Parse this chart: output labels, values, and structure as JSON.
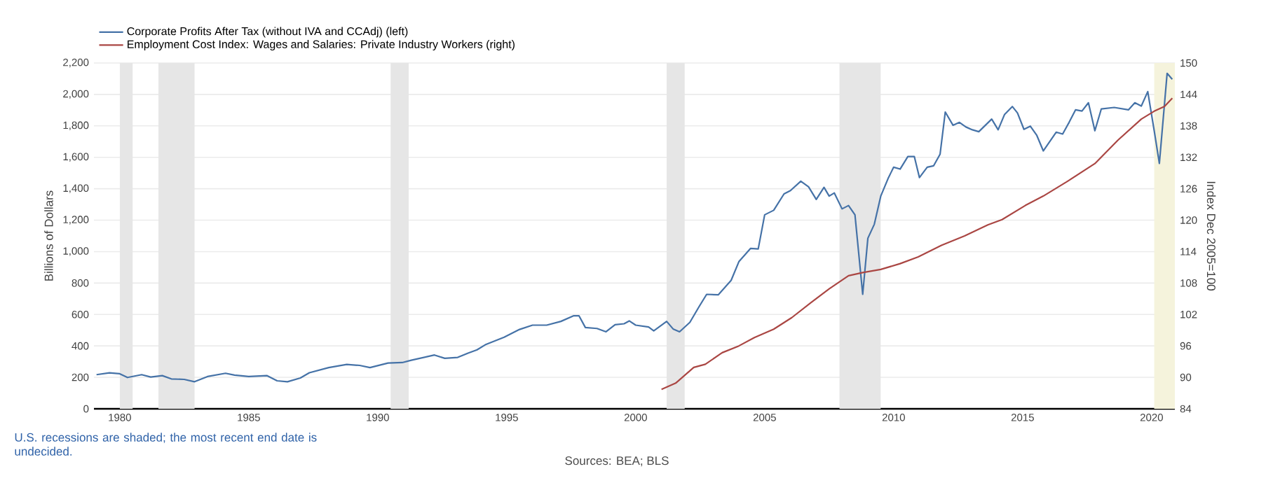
{
  "chart_data": {
    "type": "line",
    "xlim": [
      1979,
      2020.9
    ],
    "xticks": [
      1980,
      1985,
      1990,
      1995,
      2000,
      2005,
      2010,
      2015,
      2020
    ],
    "ylim": [
      0,
      2200
    ],
    "yticks": [
      {
        "value": 0,
        "label": "0"
      },
      {
        "value": 200,
        "label": "200"
      },
      {
        "value": 400,
        "label": "400"
      },
      {
        "value": 600,
        "label": "600"
      },
      {
        "value": 800,
        "label": "800"
      },
      {
        "value": 1000,
        "label": "1,000"
      },
      {
        "value": 1200,
        "label": "1,200"
      },
      {
        "value": 1400,
        "label": "1,400"
      },
      {
        "value": 1600,
        "label": "1,600"
      },
      {
        "value": 1800,
        "label": "1,800"
      },
      {
        "value": 2000,
        "label": "2,000"
      },
      {
        "value": 2200,
        "label": "2,200"
      }
    ],
    "y2lim": [
      84,
      150
    ],
    "y2ticks": [
      84,
      90,
      96,
      102,
      108,
      114,
      120,
      126,
      132,
      138,
      144,
      150
    ],
    "ylabel": "Billions of Dollars",
    "y2label": "Index Dec 2005=100",
    "grid": "y",
    "legend": "top left",
    "series": [
      {
        "name": "Corporate Profits After Tax (without IVA and CCAdj) (left)",
        "color": "#4572a7",
        "x": [
          1979.1,
          1979.6,
          1980.0,
          1980.3,
          1980.85,
          1981.2,
          1981.65,
          1982.0,
          1982.5,
          1982.9,
          1983.4,
          1984.1,
          1984.45,
          1985.0,
          1985.7,
          1986.1,
          1986.5,
          1987.0,
          1987.35,
          1988.1,
          1988.8,
          1989.3,
          1989.7,
          1990.4,
          1990.95,
          1991.3,
          1992.2,
          1992.6,
          1993.1,
          1993.5,
          1993.85,
          1994.2,
          1994.9,
          1995.5,
          1996.0,
          1996.55,
          1997.1,
          1997.6,
          1997.8,
          1998.05,
          1998.5,
          1998.85,
          1999.2,
          1999.55,
          1999.75,
          2000.0,
          2000.5,
          2000.7,
          2001.2,
          2001.45,
          2001.7,
          2002.1,
          2002.45,
          2002.75,
          2003.2,
          2003.7,
          2004.0,
          2004.45,
          2004.75,
          2005.0,
          2005.35,
          2005.75,
          2006.0,
          2006.4,
          2006.7,
          2007.0,
          2007.3,
          2007.5,
          2007.7,
          2008.0,
          2008.25,
          2008.5,
          2008.8,
          2009.0,
          2009.25,
          2009.5,
          2009.8,
          2010.0,
          2010.25,
          2010.55,
          2010.8,
          2011.0,
          2011.3,
          2011.55,
          2011.8,
          2012.0,
          2012.3,
          2012.55,
          2012.8,
          2013.05,
          2013.3,
          2013.8,
          2014.05,
          2014.3,
          2014.6,
          2014.8,
          2015.05,
          2015.3,
          2015.55,
          2015.8,
          2016.3,
          2016.55,
          2016.8,
          2017.05,
          2017.3,
          2017.55,
          2017.8,
          2018.05,
          2018.55,
          2019.1,
          2019.35,
          2019.6,
          2019.85,
          2020.1,
          2020.3,
          2020.6,
          2020.8
        ],
        "values": [
          217,
          229,
          223,
          199,
          217,
          202,
          211,
          190,
          187,
          172,
          205,
          226,
          214,
          205,
          211,
          178,
          172,
          196,
          229,
          262,
          282,
          276,
          262,
          291,
          294,
          309,
          342,
          321,
          327,
          354,
          375,
          410,
          455,
          505,
          532,
          532,
          556,
          592,
          592,
          517,
          511,
          490,
          535,
          541,
          559,
          532,
          520,
          496,
          556,
          508,
          490,
          550,
          648,
          728,
          725,
          817,
          936,
          1020,
          1017,
          1234,
          1263,
          1367,
          1388,
          1448,
          1412,
          1332,
          1409,
          1353,
          1373,
          1272,
          1293,
          1234,
          728,
          1085,
          1174,
          1353,
          1471,
          1537,
          1525,
          1605,
          1605,
          1471,
          1537,
          1546,
          1620,
          1888,
          1804,
          1822,
          1793,
          1775,
          1763,
          1843,
          1775,
          1873,
          1923,
          1882,
          1778,
          1798,
          1739,
          1641,
          1760,
          1748,
          1822,
          1902,
          1894,
          1947,
          1769,
          1908,
          1917,
          1902,
          1947,
          1926,
          2018,
          1769,
          1561,
          2134,
          2096
        ]
      },
      {
        "name": "Employment Cost Index: Wages and Salaries: Private Industry Workers (right)",
        "color": "#aa4643",
        "axis": "y2",
        "x": [
          2001.0,
          2001.55,
          2002.25,
          2002.7,
          2003.35,
          2004.0,
          2004.6,
          2005.35,
          2006.05,
          2006.8,
          2007.5,
          2008.25,
          2008.8,
          2009.5,
          2010.25,
          2010.95,
          2011.85,
          2012.75,
          2013.65,
          2014.2,
          2015.1,
          2015.8,
          2016.7,
          2017.8,
          2018.7,
          2019.6,
          2020.1,
          2020.5,
          2020.8
        ],
        "values": [
          87.7,
          88.9,
          91.9,
          92.5,
          94.7,
          96.0,
          97.6,
          99.2,
          101.4,
          104.3,
          106.9,
          109.4,
          110.0,
          110.6,
          111.7,
          113.0,
          115.2,
          117.0,
          119.1,
          120.1,
          122.8,
          124.6,
          127.3,
          130.8,
          135.3,
          139.3,
          140.8,
          141.7,
          143.3
        ]
      }
    ],
    "bands": [
      {
        "axis": "x",
        "from": 1980.0,
        "to": 1980.5,
        "color": "#e6e6e6"
      },
      {
        "axis": "x",
        "from": 1981.5,
        "to": 1982.9,
        "color": "#e6e6e6"
      },
      {
        "axis": "x",
        "from": 1990.5,
        "to": 1991.2,
        "color": "#e6e6e6"
      },
      {
        "axis": "x",
        "from": 2001.2,
        "to": 2001.9,
        "color": "#e6e6e6"
      },
      {
        "axis": "x",
        "from": 2007.9,
        "to": 2009.5,
        "color": "#e6e6e6"
      },
      {
        "axis": "x",
        "from": 2020.1,
        "to": 2020.9,
        "color": "#f5f3dc"
      }
    ],
    "annotations": [
      "U.S. recessions are shaded; the most recent end date is undecided.",
      "Sources: BEA; BLS"
    ]
  }
}
